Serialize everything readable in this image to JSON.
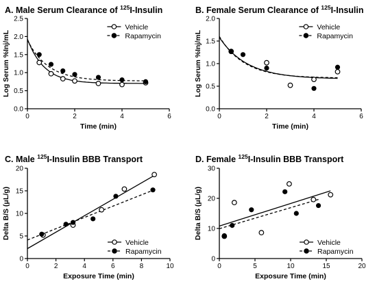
{
  "chart_data": [
    {
      "type": "scatter",
      "panel_letter": "A.",
      "title": "Male Serum Clearance of ",
      "title_sup": "125",
      "title_rest": "I-Insulin",
      "xlabel": "Time (min)",
      "ylabel": "Log Serum %Inj/mL",
      "xlim": [
        0,
        6
      ],
      "ylim": [
        0,
        2.5
      ],
      "xticks": [
        0,
        2,
        4,
        6
      ],
      "yticks": [
        0,
        0.5,
        1.0,
        1.5,
        2.0,
        2.5
      ],
      "ytick_labels": [
        "0.0",
        "0.5",
        "1.0",
        "1.5",
        "2.0",
        "2.5"
      ],
      "legend_position": "top-right",
      "series": [
        {
          "name": "Vehicle",
          "marker": "open-circle",
          "line": "solid",
          "x": [
            0.5,
            1,
            1.5,
            2,
            3,
            4,
            5
          ],
          "y": [
            1.28,
            0.97,
            0.83,
            0.77,
            0.7,
            0.67,
            0.72
          ],
          "fit": {
            "kind": "exp",
            "y0": 1.93,
            "plateau": 0.7,
            "k": 1.4
          }
        },
        {
          "name": "Rapamycin",
          "marker": "filled-circle",
          "line": "dashed",
          "x": [
            0.5,
            1,
            1.5,
            2,
            3,
            4,
            5
          ],
          "y": [
            1.5,
            1.23,
            1.05,
            0.95,
            0.87,
            0.8,
            0.75
          ],
          "fit": {
            "kind": "exp",
            "y0": 1.9,
            "plateau": 0.77,
            "k": 1.15
          }
        }
      ]
    },
    {
      "type": "scatter",
      "panel_letter": "B.",
      "title": "Female Serum Clearance of ",
      "title_sup": "125",
      "title_rest": "I-Insulin",
      "xlabel": "Time (min)",
      "ylabel": "Log Serum %Inj/mL",
      "xlim": [
        0,
        6
      ],
      "ylim": [
        0,
        2.0
      ],
      "xticks": [
        0,
        2,
        4,
        6
      ],
      "yticks": [
        0,
        0.5,
        1.0,
        1.5,
        2.0
      ],
      "ytick_labels": [
        "0.0",
        "0.5",
        "1.0",
        "1.5",
        "2.0"
      ],
      "legend_position": "top-right",
      "series": [
        {
          "name": "Vehicle",
          "marker": "open-circle",
          "line": "solid",
          "x": [
            0.5,
            2,
            3,
            4,
            5
          ],
          "y": [
            1.27,
            1.02,
            0.52,
            0.65,
            0.82
          ],
          "fit": {
            "kind": "exp",
            "y0": 1.58,
            "plateau": 0.66,
            "k": 0.85
          }
        },
        {
          "name": "Rapamycin",
          "marker": "filled-circle",
          "line": "dashed",
          "x": [
            0.5,
            1,
            2,
            4,
            5
          ],
          "y": [
            1.27,
            1.2,
            0.9,
            0.45,
            0.92
          ],
          "fit": {
            "kind": "exp",
            "y0": 1.6,
            "plateau": 0.68,
            "k": 0.95
          }
        }
      ]
    },
    {
      "type": "scatter",
      "panel_letter": "C.",
      "title": "Male ",
      "title_sup": "125",
      "title_rest": "I-Insulin BBB Transport",
      "xlabel": "Exposure Time (min)",
      "ylabel": "Delta B/S (μL/g)",
      "xlim": [
        0,
        10
      ],
      "ylim": [
        0,
        20
      ],
      "xticks": [
        0,
        2,
        4,
        6,
        8,
        10
      ],
      "yticks": [
        0,
        5,
        10,
        15,
        20
      ],
      "ytick_labels": [
        "0",
        "5",
        "10",
        "15",
        "20"
      ],
      "legend_position": "bottom-right",
      "series": [
        {
          "name": "Vehicle",
          "marker": "open-circle",
          "line": "solid",
          "x": [
            1.1,
            3.2,
            5.2,
            6.8,
            8.9
          ],
          "y": [
            5.2,
            7.4,
            10.8,
            15.4,
            18.6
          ],
          "fit": {
            "kind": "linear",
            "slope": 1.82,
            "intercept": 2.2
          }
        },
        {
          "name": "Rapamycin",
          "marker": "filled-circle",
          "line": "dashed",
          "x": [
            1.0,
            2.7,
            3.2,
            4.6,
            6.2,
            8.8
          ],
          "y": [
            5.4,
            7.6,
            8.0,
            8.8,
            13.8,
            15.2
          ],
          "fit": {
            "kind": "linear",
            "slope": 1.25,
            "intercept": 4.1
          }
        }
      ]
    },
    {
      "type": "scatter",
      "panel_letter": "D.",
      "title": "Female ",
      "title_sup": "125",
      "title_rest": "I-Insulin BBB Transport",
      "xlabel": "Exposure Time (min)",
      "ylabel": "Delta B/S (μL/g)",
      "xlim": [
        0,
        20
      ],
      "ylim": [
        0,
        30
      ],
      "xticks": [
        0,
        5,
        10,
        15,
        20
      ],
      "yticks": [
        0,
        10,
        20,
        30
      ],
      "ytick_labels": [
        "0",
        "10",
        "20",
        "30"
      ],
      "legend_position": "bottom-right",
      "series": [
        {
          "name": "Vehicle",
          "marker": "open-circle",
          "line": "solid",
          "x": [
            0.7,
            2.1,
            5.9,
            9.8,
            13.2,
            15.6
          ],
          "y": [
            7.4,
            18.6,
            8.6,
            24.8,
            19.6,
            21.2
          ],
          "fit": {
            "kind": "linear",
            "slope": 0.75,
            "intercept": 10.8
          }
        },
        {
          "name": "Rapamycin",
          "marker": "filled-circle",
          "line": "dashed",
          "x": [
            0.7,
            1.8,
            4.5,
            9.2,
            10.8,
            13.9
          ],
          "y": [
            7.6,
            11.0,
            16.2,
            22.2,
            15.0,
            17.6
          ],
          "fit": {
            "kind": "linear",
            "slope": 0.7,
            "intercept": 9.9
          }
        }
      ]
    }
  ]
}
